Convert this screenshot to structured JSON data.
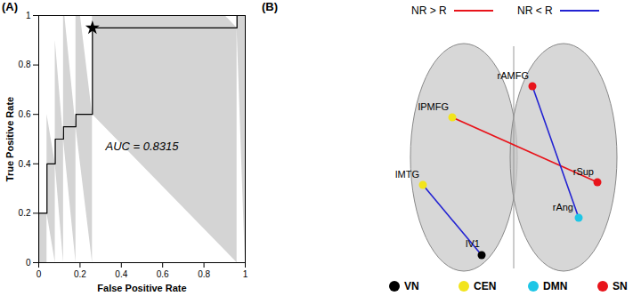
{
  "chart_data": {
    "type": "area",
    "title": "(A)",
    "xlabel": "False Positive Rate",
    "ylabel": "True Positive Rate",
    "x": [
      0,
      0,
      0.04,
      0.04,
      0.08,
      0.08,
      0.12,
      0.12,
      0.18,
      0.18,
      0.26,
      0.26,
      0.96,
      0.96,
      1
    ],
    "values": [
      0,
      0.2,
      0.2,
      0.4,
      0.4,
      0.5,
      0.5,
      0.55,
      0.55,
      0.6,
      0.6,
      0.95,
      0.95,
      1,
      1
    ],
    "color": "#000000",
    "xlim": [
      0,
      1
    ],
    "ylim": [
      0,
      1
    ],
    "xticks": [
      0,
      0.2,
      0.4,
      0.6,
      0.8,
      1
    ],
    "yticks": [
      0,
      0.2,
      0.4,
      0.6,
      0.8,
      1
    ],
    "optimal_point": {
      "x": 0.26,
      "y": 0.95,
      "marker": "star"
    },
    "annotations": [
      {
        "text": "AUC = 0.8315",
        "x": 0.5,
        "y": 0.47
      }
    ]
  },
  "diagram": {
    "title": "(B)",
    "edge_legend": [
      {
        "label": "NR > R",
        "color": "#e8141b"
      },
      {
        "label": "NR < R",
        "color": "#2323d2"
      }
    ],
    "networks": [
      {
        "label": "VN",
        "color": "#000000"
      },
      {
        "label": "CEN",
        "color": "#f2e41c"
      },
      {
        "label": "DMN",
        "color": "#1ec6e6"
      },
      {
        "label": "SN",
        "color": "#e8141b"
      }
    ],
    "nodes": [
      {
        "label": "rAMFG",
        "network": "SN"
      },
      {
        "label": "lPMFG",
        "network": "CEN"
      },
      {
        "label": "lMTG",
        "network": "CEN"
      },
      {
        "label": "rSup",
        "network": "SN"
      },
      {
        "label": "rAng",
        "network": "DMN"
      },
      {
        "label": "lV1",
        "network": "VN"
      }
    ],
    "edges": [
      {
        "source": "lPMFG",
        "target": "rSup",
        "type": "NR > R"
      },
      {
        "source": "rAMFG",
        "target": "rAng",
        "type": "NR < R"
      },
      {
        "source": "lMTG",
        "target": "lV1",
        "type": "NR < R"
      }
    ]
  }
}
